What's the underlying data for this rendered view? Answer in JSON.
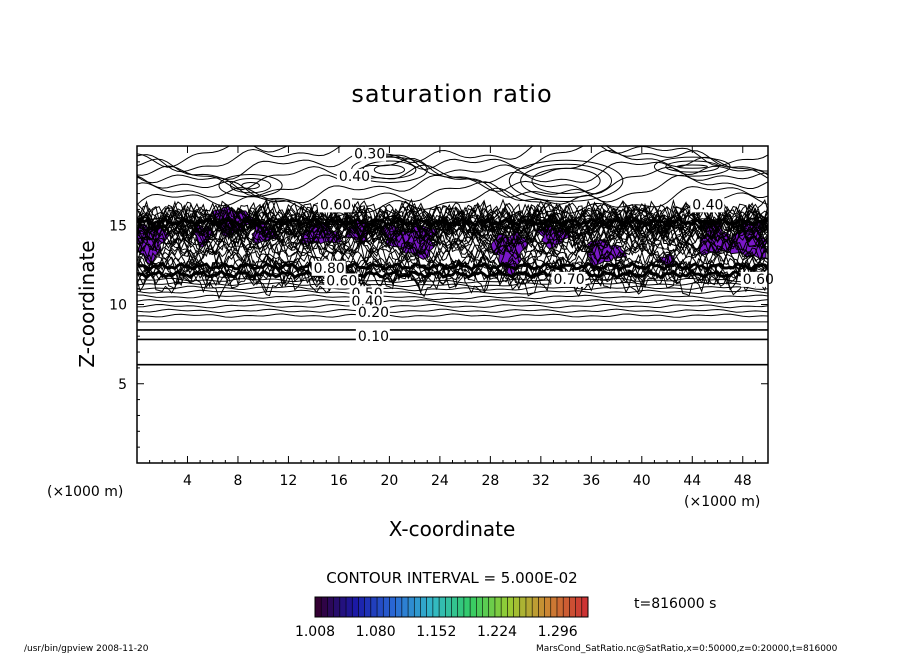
{
  "chart_data": {
    "type": "contour",
    "title": "saturation ratio",
    "xlabel": "X-coordinate",
    "ylabel": "Z-coordinate",
    "x_unit": "(×1000 m)",
    "z_unit": "(×1000 m)",
    "xlim": [
      0,
      50
    ],
    "ylim": [
      0,
      20
    ],
    "x_ticks": [
      4,
      8,
      12,
      16,
      20,
      24,
      28,
      32,
      36,
      40,
      44,
      48
    ],
    "y_ticks": [
      5,
      10,
      15
    ],
    "contour_labels": [
      {
        "text": "0.30",
        "x": 17.2,
        "z": 19.2
      },
      {
        "text": "0.40",
        "x": 16.0,
        "z": 17.8
      },
      {
        "text": "0.40",
        "x": 44.0,
        "z": 16.0
      },
      {
        "text": "0.60",
        "x": 14.5,
        "z": 16.0
      },
      {
        "text": "0.80",
        "x": 14.0,
        "z": 12.0
      },
      {
        "text": "0.60",
        "x": 15.0,
        "z": 11.2
      },
      {
        "text": "0.70",
        "x": 33.0,
        "z": 11.3
      },
      {
        "text": "0.60",
        "x": 48.0,
        "z": 11.3
      },
      {
        "text": "0.50",
        "x": 17.0,
        "z": 10.4
      },
      {
        "text": "0.40",
        "x": 17.0,
        "z": 9.9
      },
      {
        "text": "0.20",
        "x": 17.5,
        "z": 9.2
      },
      {
        "text": "0.10",
        "x": 17.5,
        "z": 7.7
      }
    ],
    "contour_levels": [
      0.05,
      0.1,
      0.15,
      0.2,
      0.25,
      0.3,
      0.35,
      0.4,
      0.45,
      0.5,
      0.55,
      0.6,
      0.65,
      0.7,
      0.75,
      0.8,
      0.85,
      0.9,
      0.95,
      1.0
    ],
    "contour_interval_text": "CONTOUR INTERVAL = 5.000E-02",
    "colorbar": {
      "min": 1.008,
      "max": 1.332,
      "tick_labels": [
        "1.008",
        "1.080",
        "1.152",
        "1.224",
        "1.296"
      ],
      "colors": [
        "#330033",
        "#1a1aa8",
        "#2a6ad6",
        "#33b8c8",
        "#33cc66",
        "#99cc33",
        "#cc8833",
        "#cc3333"
      ]
    },
    "supersaturated_fill_color": "#7a18c8"
  },
  "time_label": "t=816000 s",
  "footer_left": "/usr/bin/gpview   2008-11-20",
  "footer_right": "MarsCond_SatRatio.nc@SatRatio,x=0:50000,z=0:20000,t=816000"
}
